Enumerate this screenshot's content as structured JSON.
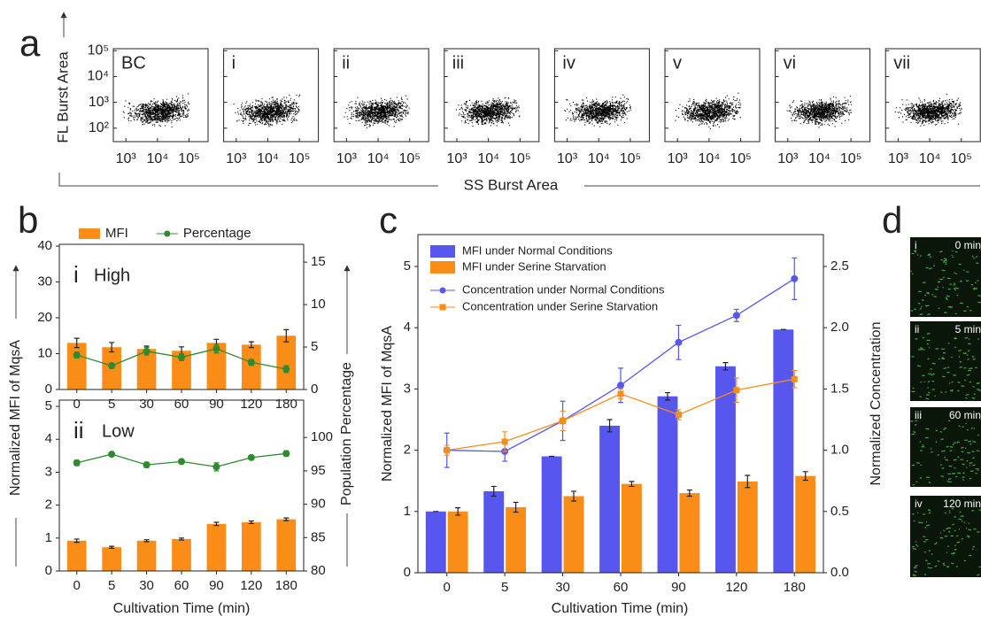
{
  "chart_data": [
    {
      "type": "scatter",
      "panel": "a",
      "x_label": "SS Burst Area",
      "y_label": "FL Burst Area",
      "plots": [
        "BC",
        "i",
        "ii",
        "iii",
        "iv",
        "v",
        "vi",
        "vii"
      ],
      "xscale": "log",
      "yscale": "log",
      "xlim": [
        400,
        400000
      ],
      "ylim": [
        30,
        120000
      ],
      "xticks": [
        {
          "value": 1000,
          "label": "10³"
        },
        {
          "value": 10000,
          "label": "10⁴"
        },
        {
          "value": 100000,
          "label": "10⁵"
        }
      ],
      "yticks": [
        {
          "value": 100,
          "label": "10²"
        },
        {
          "value": 1000,
          "label": "10³"
        },
        {
          "value": 10000,
          "label": "10⁴"
        },
        {
          "value": 100000,
          "label": "10⁵"
        }
      ]
    },
    {
      "type": "bar",
      "panel": "b",
      "numeral": "i",
      "subtitle": "High",
      "y_label": "Normalized MFI of MqsA",
      "y2_label": "Population Percentage",
      "legend": "top",
      "categories": [
        "0",
        "5",
        "30",
        "60",
        "90",
        "120",
        "180"
      ],
      "series": [
        {
          "name": "MFI",
          "color": "#f98d17",
          "values": [
            13,
            11.8,
            11.3,
            10.8,
            13,
            12.5,
            15
          ],
          "errors": [
            1.3,
            1.3,
            0.8,
            1.1,
            1.0,
            0.8,
            1.7
          ]
        },
        {
          "name": "Percentage",
          "color": "#2e8b2e",
          "type": "line",
          "axis": "y2",
          "marker": "circle",
          "values": [
            4.06,
            2.8,
            4.5,
            3.8,
            4.8,
            3.2,
            2.4
          ],
          "errors": [
            0.35,
            0.3,
            0.45,
            0.4,
            0.5,
            0.35,
            0.4
          ]
        }
      ],
      "ylim": [
        0,
        40.5
      ],
      "yticks": [
        0,
        10,
        20,
        30,
        40
      ],
      "y2lim": [
        0,
        17.1
      ],
      "y2ticks": [
        0,
        5,
        10,
        15
      ]
    },
    {
      "type": "bar",
      "panel": null,
      "numeral": "ii",
      "subtitle": "Low",
      "x_label": "Cultivation Time (min)",
      "categories": [
        "0",
        "5",
        "30",
        "60",
        "90",
        "120",
        "180"
      ],
      "series": [
        {
          "color": "#f98d17",
          "values": [
            0.92,
            0.72,
            0.92,
            0.97,
            1.43,
            1.48,
            1.57
          ],
          "errors": [
            0.05,
            0.03,
            0.03,
            0.03,
            0.05,
            0.04,
            0.04
          ]
        },
        {
          "color": "#2e8b2e",
          "type": "line",
          "axis": "y2",
          "marker": "circle",
          "values": [
            96.2,
            97.5,
            95.9,
            96.4,
            95.6,
            97.0,
            97.6
          ],
          "errors": [
            0.4,
            0.3,
            0.4,
            0.3,
            0.6,
            0.3,
            0.4
          ]
        }
      ],
      "ylim": [
        0,
        5.19
      ],
      "yticks": [
        0,
        1,
        2,
        3,
        4,
        5
      ],
      "y2lim": [
        80,
        105.6
      ],
      "y2ticks": [
        80,
        85,
        90,
        95,
        100
      ]
    },
    {
      "type": "bar",
      "panel": "c",
      "x_label": "Cultivation Time (min)",
      "y_label": "Normalized MFI of MqsA",
      "y2_label": "Normalized Concentration",
      "legend": "upper left",
      "categories": [
        "0",
        "5",
        "30",
        "60",
        "90",
        "120",
        "180"
      ],
      "series": [
        {
          "name": "MFI under Normal Conditions",
          "color": "#5757f0",
          "values": [
            1.0,
            1.33,
            1.9,
            2.4,
            2.88,
            3.37,
            3.97
          ],
          "errors": [
            0,
            0.08,
            0,
            0.1,
            0.06,
            0.06,
            0
          ]
        },
        {
          "name": "MFI under Serine Starvation",
          "color": "#f98d17",
          "values": [
            1.0,
            1.07,
            1.25,
            1.45,
            1.3,
            1.49,
            1.58
          ],
          "errors": [
            0.06,
            0.08,
            0.08,
            0.04,
            0.05,
            0.1,
            0.07
          ]
        },
        {
          "name": "Concentration under Normal Conditions",
          "color": "#5757f0",
          "type": "line",
          "axis": "y2",
          "marker": "circle",
          "values": [
            1.0,
            0.99,
            1.24,
            1.53,
            1.88,
            2.1,
            2.4
          ],
          "errors": [
            0.14,
            0.08,
            0.16,
            0.14,
            0.14,
            0.05,
            0.17
          ]
        },
        {
          "name": "Concentration under Serine Starvation",
          "color": "#f98d17",
          "type": "line",
          "axis": "y2",
          "marker": "square",
          "values": [
            1.0,
            1.07,
            1.24,
            1.46,
            1.29,
            1.49,
            1.58
          ],
          "errors": [
            0.04,
            0.08,
            0.08,
            0.04,
            0.04,
            0.1,
            0.07
          ]
        }
      ],
      "ylim": [
        0,
        5.52
      ],
      "yticks": [
        0,
        1,
        2,
        3,
        4,
        5
      ],
      "y2lim": [
        0,
        2.76
      ],
      "y2ticks": [
        {
          "value": 0,
          "label": "0.0"
        },
        0.5,
        {
          "value": 1,
          "label": "1.0"
        },
        1.5,
        {
          "value": 2,
          "label": "2.0"
        },
        2.5
      ]
    }
  ],
  "panel_d": {
    "label": "d",
    "images": [
      {
        "numeral": "i",
        "time": "0 min"
      },
      {
        "numeral": "ii",
        "time": "5 min"
      },
      {
        "numeral": "iii",
        "time": "60 min"
      },
      {
        "numeral": "iv",
        "time": "120 min"
      }
    ]
  }
}
